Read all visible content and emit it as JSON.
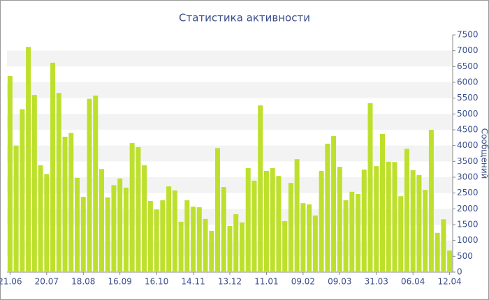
{
  "chart_data": {
    "type": "bar",
    "title": "Статистика активности",
    "y_label": "Сообщений",
    "categories": [
      "21.06",
      null,
      null,
      null,
      null,
      null,
      "20.07",
      null,
      null,
      null,
      null,
      null,
      "18.08",
      null,
      null,
      null,
      null,
      null,
      "16.09",
      null,
      null,
      null,
      null,
      null,
      "16.10",
      null,
      null,
      null,
      null,
      null,
      "14.11",
      null,
      null,
      null,
      null,
      null,
      "13.12",
      null,
      null,
      null,
      null,
      null,
      "11.01",
      null,
      null,
      null,
      null,
      null,
      "09.02",
      null,
      null,
      null,
      null,
      null,
      "09.03",
      null,
      null,
      null,
      null,
      null,
      "31.03",
      null,
      null,
      null,
      null,
      null,
      "06.04",
      null,
      null,
      null,
      null,
      null,
      "12.04"
    ],
    "values": [
      6200,
      4000,
      5150,
      7120,
      5600,
      3380,
      3100,
      6620,
      5660,
      4280,
      4400,
      2980,
      2380,
      5480,
      5580,
      3260,
      2360,
      2750,
      2960,
      2670,
      4080,
      3950,
      3380,
      2250,
      1980,
      2270,
      2710,
      2580,
      1590,
      2270,
      2070,
      2050,
      1680,
      1300,
      3920,
      2690,
      1460,
      1830,
      1570,
      3290,
      2890,
      5270,
      3200,
      3290,
      3040,
      1610,
      2820,
      3570,
      2180,
      2140,
      1790,
      3200,
      4060,
      4300,
      3330,
      2270,
      2540,
      2470,
      3240,
      5340,
      3350,
      4370,
      3490,
      3480,
      2400,
      3900,
      3220,
      3070,
      2600,
      4500,
      1240,
      1670,
      680
    ],
    "color": "#bde02c",
    "ylim": [
      0,
      7500
    ],
    "yticks": [
      0,
      500,
      1000,
      1500,
      2000,
      2500,
      3000,
      3500,
      4000,
      4500,
      5000,
      5500,
      6000,
      6500,
      7000,
      7500
    ],
    "grid": true
  }
}
